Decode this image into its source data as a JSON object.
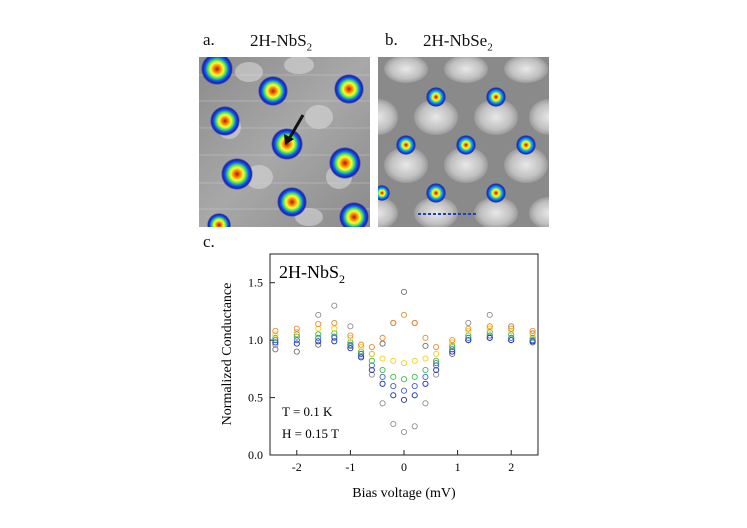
{
  "figure": {
    "panel_a": {
      "label": "a.",
      "title_main": "2H-NbS",
      "title_sub": "2"
    },
    "panel_b": {
      "label": "b.",
      "title_main": "2H-NbSe",
      "title_sub": "2"
    },
    "panel_c": {
      "label": "c.",
      "title_main": "2H-NbS",
      "title_sub": "2"
    },
    "annotations": {
      "temperature": "T = 0.1 K",
      "field": "H = 0.15 T"
    }
  },
  "chart_data": {
    "type": "scatter",
    "title": "2H-NbS2",
    "xlabel": "Bias voltage (mV)",
    "ylabel": "Normalized Conductance",
    "xlim": [
      -2.5,
      2.5
    ],
    "ylim": [
      0.0,
      1.75
    ],
    "xticks": [
      -2,
      -1,
      0,
      1,
      2
    ],
    "xtick_labels": [
      "-2",
      "-1",
      "0",
      "1",
      "2"
    ],
    "yticks": [
      0.0,
      0.5,
      1.0,
      1.5
    ],
    "ytick_labels": [
      "0.0",
      "0.5",
      "1.0",
      "1.5"
    ],
    "marker": "open-circle",
    "series": [
      {
        "name": "curve-1",
        "color": "#8f8f8f",
        "x": [
          -2.4,
          -2.0,
          -1.6,
          -1.3,
          -1.0,
          -0.8,
          -0.6,
          -0.4,
          -0.2,
          0.0,
          0.2,
          0.4,
          0.6,
          0.9,
          1.2,
          1.6,
          2.0,
          2.4
        ],
        "y": [
          0.96,
          1.05,
          1.22,
          1.3,
          1.12,
          0.86,
          0.7,
          0.45,
          0.27,
          0.2,
          0.25,
          0.45,
          0.7,
          0.95,
          1.15,
          1.22,
          1.12,
          1.06
        ]
      },
      {
        "name": "curve-2",
        "color": "#6f6f6f",
        "x": [
          -2.4,
          -2.0,
          -1.6,
          -1.3,
          -1.0,
          -0.8,
          -0.6,
          -0.4,
          -0.2,
          0.0,
          0.2,
          0.4,
          0.6,
          0.9,
          1.2,
          1.6,
          2.0,
          2.4
        ],
        "y": [
          0.92,
          0.9,
          0.96,
          1.02,
          0.95,
          0.88,
          0.88,
          0.97,
          1.15,
          1.42,
          1.15,
          0.95,
          0.8,
          0.88,
          1.0,
          1.02,
          1.0,
          0.98
        ]
      },
      {
        "name": "curve-3",
        "color": "#1f2fb0",
        "x": [
          -2.4,
          -2.0,
          -1.6,
          -1.3,
          -1.0,
          -0.8,
          -0.6,
          -0.4,
          -0.2,
          0.0,
          0.2,
          0.4,
          0.6,
          0.9,
          1.2,
          1.6,
          2.0,
          2.4
        ],
        "y": [
          0.98,
          0.97,
          0.99,
          0.99,
          0.93,
          0.85,
          0.74,
          0.62,
          0.52,
          0.48,
          0.52,
          0.62,
          0.74,
          0.9,
          1.0,
          1.02,
          1.0,
          0.99
        ]
      },
      {
        "name": "curve-4",
        "color": "#3f5fe0",
        "x": [
          -2.4,
          -2.0,
          -1.6,
          -1.3,
          -1.0,
          -0.8,
          -0.6,
          -0.4,
          -0.2,
          0.0,
          0.2,
          0.4,
          0.6,
          0.9,
          1.2,
          1.6,
          2.0,
          2.4
        ],
        "y": [
          1.0,
          1.0,
          1.02,
          1.03,
          0.96,
          0.88,
          0.78,
          0.68,
          0.6,
          0.56,
          0.6,
          0.68,
          0.78,
          0.92,
          1.02,
          1.04,
          1.02,
          1.0
        ]
      },
      {
        "name": "curve-5",
        "color": "#35c040",
        "x": [
          -2.4,
          -2.0,
          -1.6,
          -1.3,
          -1.0,
          -0.8,
          -0.6,
          -0.4,
          -0.2,
          0.0,
          0.2,
          0.4,
          0.6,
          0.9,
          1.2,
          1.6,
          2.0,
          2.4
        ],
        "y": [
          1.02,
          1.03,
          1.05,
          1.06,
          0.98,
          0.9,
          0.82,
          0.74,
          0.68,
          0.66,
          0.68,
          0.74,
          0.82,
          0.94,
          1.04,
          1.07,
          1.05,
          1.02
        ]
      },
      {
        "name": "curve-6",
        "color": "#f0d020",
        "x": [
          -2.4,
          -2.0,
          -1.6,
          -1.3,
          -1.0,
          -0.8,
          -0.6,
          -0.4,
          -0.2,
          0.0,
          0.2,
          0.4,
          0.6,
          0.9,
          1.2,
          1.6,
          2.0,
          2.4
        ],
        "y": [
          1.05,
          1.07,
          1.1,
          1.1,
          1.02,
          0.94,
          0.88,
          0.84,
          0.82,
          0.8,
          0.82,
          0.84,
          0.88,
          0.98,
          1.08,
          1.1,
          1.08,
          1.05
        ]
      },
      {
        "name": "curve-7",
        "color": "#f08a30",
        "x": [
          -2.4,
          -2.0,
          -1.6,
          -1.3,
          -1.0,
          -0.8,
          -0.6,
          -0.4,
          -0.2,
          0.0,
          0.2,
          0.4,
          0.6,
          0.9,
          1.2,
          1.6,
          2.0,
          2.4
        ],
        "y": [
          1.08,
          1.1,
          1.14,
          1.15,
          1.04,
          0.96,
          0.94,
          1.02,
          1.15,
          1.22,
          1.15,
          1.02,
          0.94,
          1.0,
          1.1,
          1.12,
          1.1,
          1.08
        ]
      }
    ]
  }
}
